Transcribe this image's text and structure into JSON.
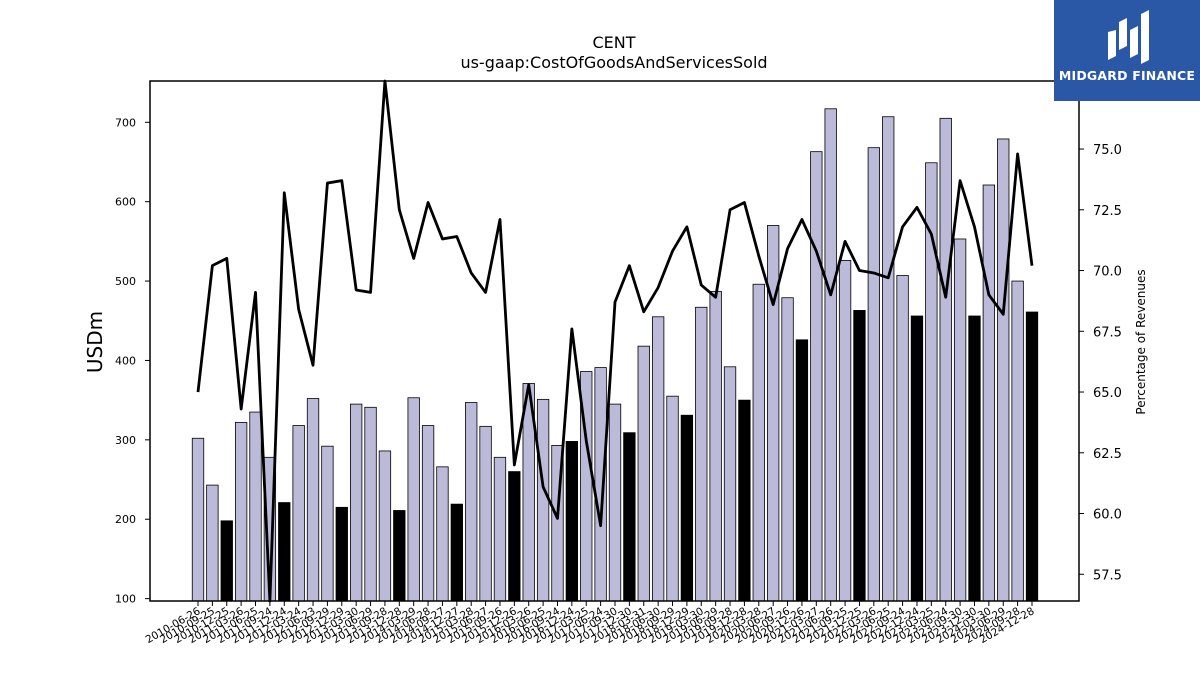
{
  "chart_data": {
    "type": "bar",
    "title": "CENT",
    "subtitle": "us-gaap:CostOfGoodsAndServicesSold",
    "ylabel": "USDm",
    "y2label": "Percentage of Revenues",
    "ylim": [
      97,
      752
    ],
    "y2lim": [
      56.4,
      77.8
    ],
    "yticks": [
      100,
      200,
      300,
      400,
      500,
      600,
      700
    ],
    "y2ticks": [
      "57.5",
      "60.0",
      "62.5",
      "65.0",
      "67.5",
      "70.0",
      "72.5",
      "75.0"
    ],
    "categories": [
      "2010-06-26",
      "2010-09-25",
      "2010-12-25",
      "2011-03-26",
      "2011-06-25",
      "2011-09-24",
      "2011-12-24",
      "2012-03-24",
      "2012-06-23",
      "2012-09-29",
      "2012-12-29",
      "2013-03-30",
      "2013-06-29",
      "2013-09-28",
      "2013-12-28",
      "2014-03-29",
      "2014-06-28",
      "2014-09-27",
      "2014-12-27",
      "2015-03-28",
      "2015-06-27",
      "2015-09-26",
      "2015-12-26",
      "2016-03-26",
      "2016-06-25",
      "2016-09-24",
      "2016-12-24",
      "2017-03-25",
      "2017-06-24",
      "2017-09-30",
      "2017-12-30",
      "2018-03-31",
      "2018-06-30",
      "2018-09-29",
      "2018-12-29",
      "2019-03-30",
      "2019-06-29",
      "2019-09-28",
      "2019-12-28",
      "2020-03-28",
      "2020-06-27",
      "2020-09-26",
      "2020-12-26",
      "2021-03-27",
      "2021-06-26",
      "2021-09-25",
      "2021-12-25",
      "2022-03-26",
      "2022-06-25",
      "2022-09-24",
      "2022-12-24",
      "2023-03-25",
      "2023-06-24",
      "2023-09-30",
      "2023-12-30",
      "2024-03-30",
      "2024-06-29",
      "2024-09-28",
      "2024-12-28"
    ],
    "tick_labels": [
      "2010-06-26",
      "2010-09-25",
      "2010-12-25",
      "2011-03-26",
      "2011-06-25",
      "2011-09-24",
      "2011-12-24",
      "2012-03-24",
      "2012-06-23",
      "2012-09-29",
      "2012-12-29",
      "2013-03-30",
      "2013-06-29",
      "2013-09-28",
      "2013-12-28",
      "2014-03-29",
      "2014-06-28",
      "2014-09-27",
      "2014-12-27",
      "2015-03-28",
      "2015-06-27",
      "2015-09-26",
      "2015-12-26",
      "2016-03-26",
      "2016-06-25",
      "2016-09-24",
      "2016-12-24",
      "2017-03-25",
      "2017-06-24",
      "2017-09-30",
      "2017-12-30",
      "2018-03-31",
      "2018-06-30",
      "2018-09-29",
      "2018-12-29",
      "2019-03-30",
      "2019-06-29",
      "2019-09-28",
      "2019-12-28",
      "2020-03-28",
      "2020-06-27",
      "2020-09-26",
      "2020-12-26",
      "2021-03-27",
      "2021-06-26",
      "2021-09-25",
      "2021-12-25",
      "2022-03-26",
      "2022-06-25",
      "2022-09-24",
      "2022-12-24",
      "2023-03-25",
      "2023-06-24",
      "2023-09-30",
      "2023-12-30",
      "2024-03-30",
      "2024-06-29",
      "2024-09-28",
      "2024-12-28"
    ],
    "series": [
      {
        "axis": "left",
        "kind": "bar",
        "values": [
          302,
          243,
          198,
          322,
          335,
          278,
          221,
          318,
          352,
          292,
          215,
          345,
          341,
          286,
          211,
          353,
          318,
          266,
          219,
          347,
          317,
          278,
          260,
          371,
          351,
          293,
          298,
          386,
          391,
          345,
          309,
          418,
          455,
          355,
          331,
          467,
          487,
          392,
          350,
          496,
          570,
          479,
          426,
          663,
          717,
          526,
          463,
          668,
          707,
          507,
          456,
          649,
          705,
          553,
          456,
          621,
          679,
          500,
          461
        ],
        "highlight": [
          false,
          false,
          true,
          false,
          false,
          false,
          true,
          false,
          false,
          false,
          true,
          false,
          false,
          false,
          true,
          false,
          false,
          false,
          true,
          false,
          false,
          false,
          true,
          false,
          false,
          false,
          true,
          false,
          false,
          false,
          true,
          false,
          false,
          false,
          true,
          false,
          false,
          false,
          true,
          false,
          false,
          false,
          true,
          false,
          false,
          false,
          true,
          false,
          false,
          false,
          true,
          false,
          false,
          false,
          true,
          false,
          false,
          false,
          true
        ],
        "color": "#bcbad9",
        "highlight_color": "#000000"
      },
      {
        "axis": "right",
        "kind": "line",
        "values": [
          65.0,
          70.2,
          70.5,
          64.3,
          69.1,
          56.4,
          73.2,
          68.4,
          66.1,
          73.6,
          73.7,
          69.2,
          69.1,
          77.8,
          72.5,
          70.5,
          72.8,
          71.3,
          71.4,
          69.9,
          69.1,
          72.1,
          62.0,
          65.3,
          61.1,
          59.8,
          67.6,
          63.0,
          59.5,
          68.7,
          70.2,
          68.3,
          69.3,
          70.8,
          71.8,
          69.4,
          68.9,
          72.5,
          72.8,
          70.6,
          68.6,
          70.9,
          72.1,
          70.8,
          69.0,
          71.2,
          70.0,
          69.9,
          69.7,
          71.8,
          72.6,
          71.5,
          68.9,
          73.7,
          71.8,
          69.0,
          68.2,
          74.8,
          70.2
        ],
        "color": "#000000"
      }
    ],
    "grid": false,
    "colors": {
      "bar": "#bcbad9",
      "bar_highlight": "#000000",
      "line": "#000000"
    }
  },
  "logo": {
    "text": "MIDGARD FINANCE",
    "background": "#2b57a7"
  }
}
